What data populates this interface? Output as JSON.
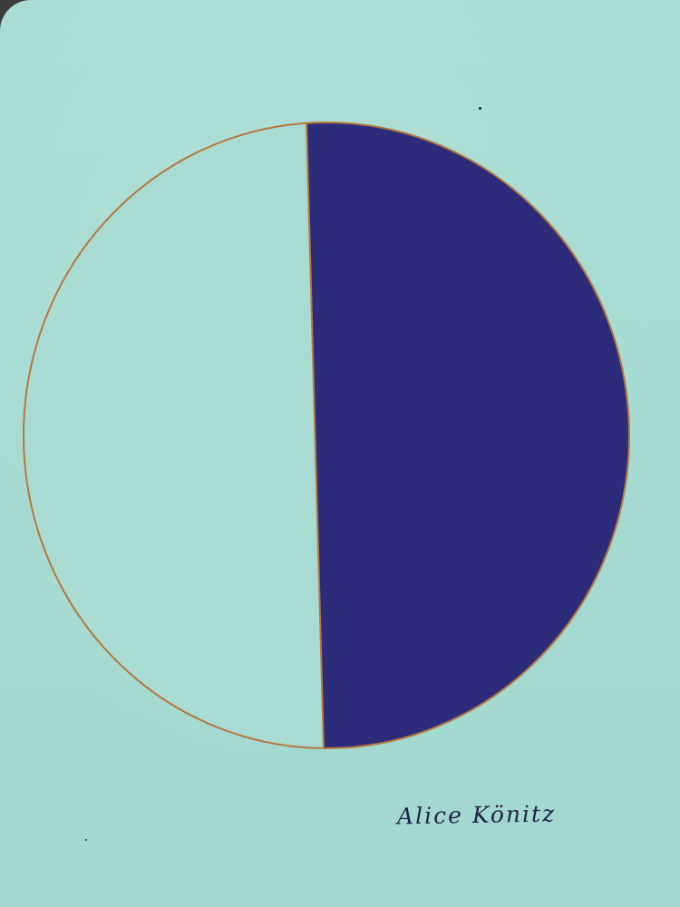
{
  "artwork": {
    "signature": "Alice Könitz",
    "colors": {
      "card_background": "#a6dbd2",
      "left_half": "#a8dcd3",
      "right_half": "#2d2c7a",
      "circle_outline": "#b6783e",
      "signature_ink": "#1d2447"
    }
  }
}
